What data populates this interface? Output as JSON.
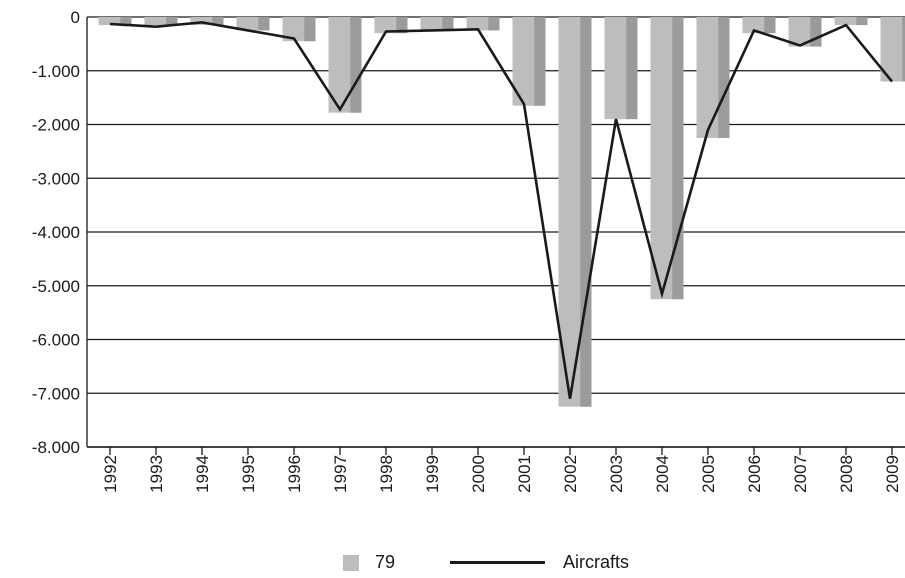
{
  "chart_data": {
    "type": "bar",
    "categories": [
      "1992",
      "1993",
      "1994",
      "1995",
      "1996",
      "1997",
      "1998",
      "1999",
      "2000",
      "2001",
      "2002",
      "2003",
      "2004",
      "2005",
      "2006",
      "2007",
      "2008",
      "2009"
    ],
    "series": [
      {
        "name": "79",
        "type": "bar",
        "color": "#bdbdbd",
        "shade": "#9b9b9b",
        "values": [
          -150,
          -150,
          -150,
          -250,
          -450,
          -1780,
          -300,
          -250,
          -250,
          -1650,
          -7250,
          -1900,
          -5250,
          -2250,
          -300,
          -550,
          -150,
          -1200
        ]
      },
      {
        "name": "Aircrafts",
        "type": "line",
        "color": "#1a1a1a",
        "values": [
          -130,
          -180,
          -100,
          -250,
          -400,
          -1720,
          -270,
          -250,
          -230,
          -1620,
          -7100,
          -1900,
          -5150,
          -2100,
          -250,
          -530,
          -150,
          -1200
        ]
      }
    ],
    "ylim": [
      -8000,
      0
    ],
    "yticks": [
      0,
      -1000,
      -2000,
      -3000,
      -4000,
      -5000,
      -6000,
      -7000,
      -8000
    ],
    "ytick_labels": [
      "0",
      "-1.000",
      "-2.000",
      "-3.000",
      "-4.000",
      "-5.000",
      "-6.000",
      "-7.000",
      "-8.000"
    ],
    "grid": true,
    "legend_position": "bottom-center",
    "title": "",
    "xlabel": "",
    "ylabel": ""
  }
}
